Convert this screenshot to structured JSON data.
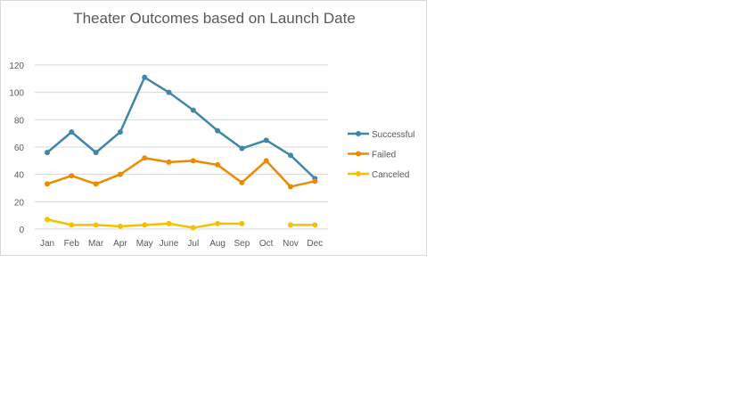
{
  "chart_data": {
    "type": "line",
    "title": "Theater Outcomes based on Launch Date",
    "xlabel": "",
    "ylabel": "",
    "categories": [
      "Jan",
      "Feb",
      "Mar",
      "Apr",
      "May",
      "June",
      "Jul",
      "Aug",
      "Sep",
      "Oct",
      "Nov",
      "Dec"
    ],
    "ylim": [
      0,
      120
    ],
    "yticks": [
      0,
      20,
      40,
      60,
      80,
      100,
      120
    ],
    "grid": true,
    "legend_position": "right",
    "series": [
      {
        "name": "Successful",
        "color": "#3f87a9",
        "values": [
          56,
          71,
          56,
          71,
          111,
          100,
          87,
          72,
          59,
          65,
          54,
          37
        ]
      },
      {
        "name": "Failed",
        "color": "#ed8b00",
        "values": [
          33,
          39,
          33,
          40,
          52,
          49,
          50,
          47,
          34,
          50,
          31,
          35
        ]
      },
      {
        "name": "Canceled",
        "color": "#f5c000",
        "values": [
          7,
          3,
          3,
          2,
          3,
          4,
          1,
          4,
          4,
          null,
          3,
          3
        ]
      }
    ]
  }
}
